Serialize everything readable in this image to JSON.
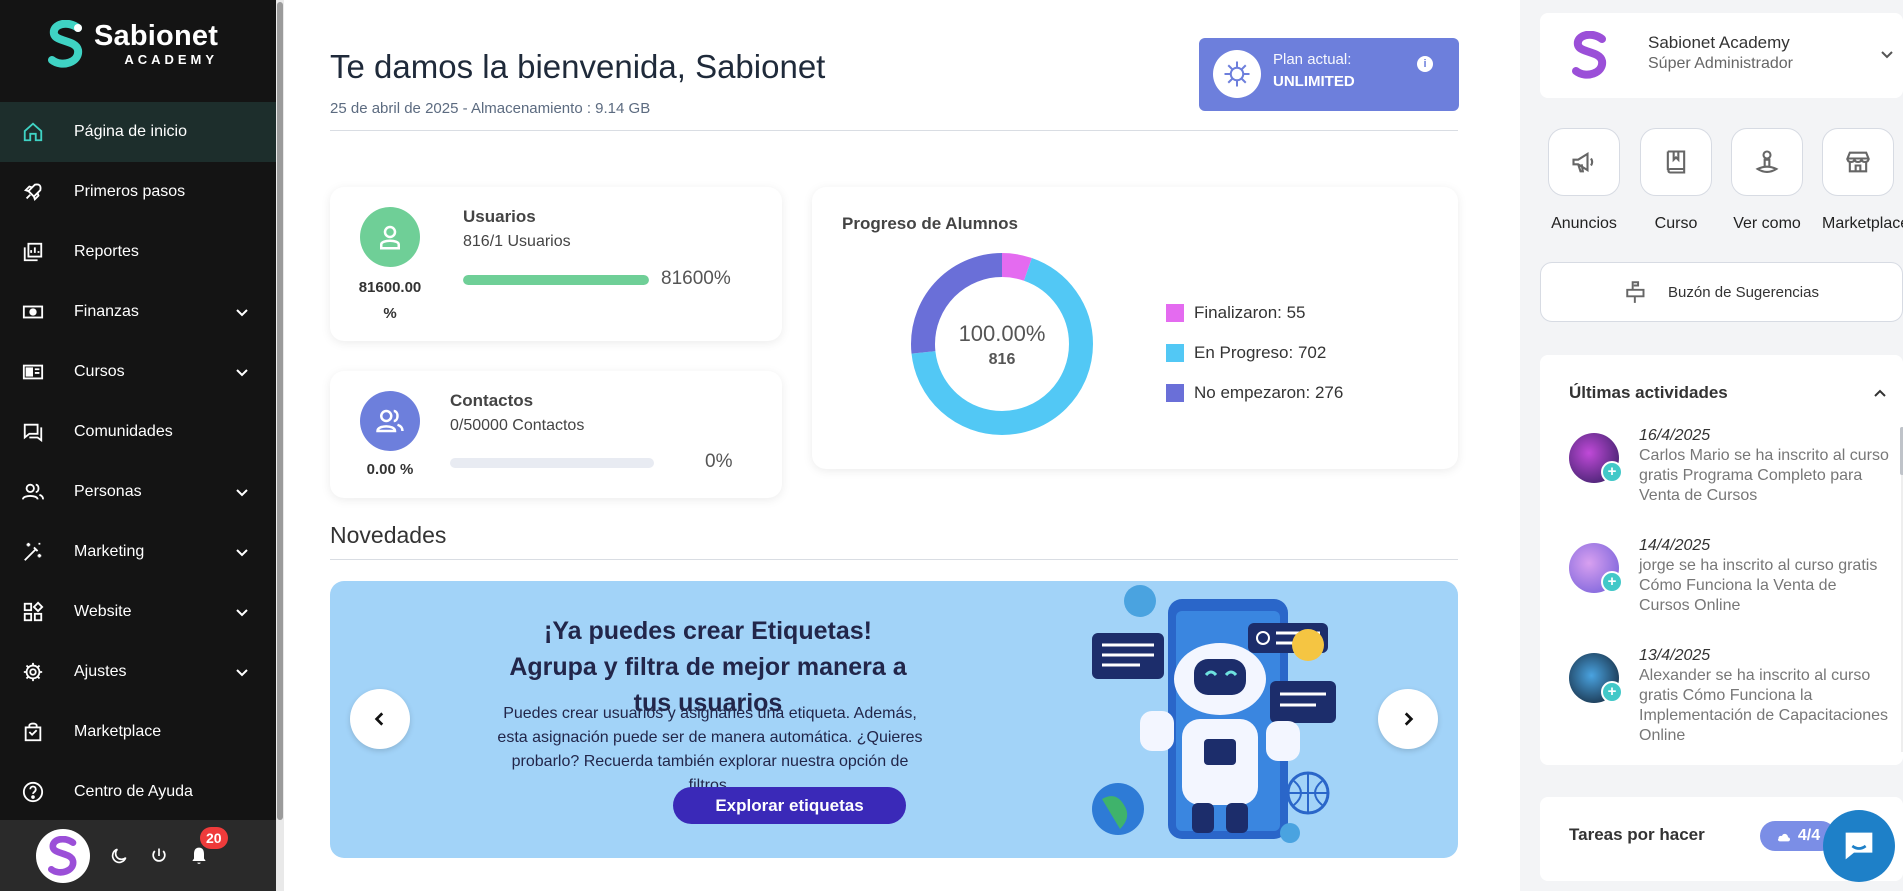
{
  "sidebar": {
    "brand": {
      "name": "Sabionet",
      "sub": "ACADEMY"
    },
    "items": [
      {
        "label": "Página de inicio",
        "icon": "home-icon",
        "active": true,
        "has_chevron": false
      },
      {
        "label": "Primeros pasos",
        "icon": "rocket-icon",
        "active": false,
        "has_chevron": false
      },
      {
        "label": "Reportes",
        "icon": "reports-icon",
        "active": false,
        "has_chevron": false
      },
      {
        "label": "Finanzas",
        "icon": "money-icon",
        "active": false,
        "has_chevron": true
      },
      {
        "label": "Cursos",
        "icon": "courses-icon",
        "active": false,
        "has_chevron": true
      },
      {
        "label": "Comunidades",
        "icon": "chat-icon",
        "active": false,
        "has_chevron": false
      },
      {
        "label": "Personas",
        "icon": "people-icon",
        "active": false,
        "has_chevron": true
      },
      {
        "label": "Marketing",
        "icon": "magic-wand-icon",
        "active": false,
        "has_chevron": true
      },
      {
        "label": "Website",
        "icon": "widgets-icon",
        "active": false,
        "has_chevron": true
      },
      {
        "label": "Ajustes",
        "icon": "gear-icon",
        "active": false,
        "has_chevron": true
      },
      {
        "label": "Marketplace",
        "icon": "shopping-bag-icon",
        "active": false,
        "has_chevron": false
      },
      {
        "label": "Centro de Ayuda",
        "icon": "help-icon",
        "active": false,
        "has_chevron": false
      }
    ],
    "notifications_count": "20"
  },
  "header": {
    "title": "Te damos la bienvenida, Sabionet",
    "subtitle": "25 de abril de 2025 - Almacenamiento : 9.14 GB",
    "plan_label": "Plan actual:",
    "plan_value": "UNLIMITED"
  },
  "stats": {
    "users": {
      "title": "Usuarios",
      "sub": "816/1 Usuarios",
      "pct_line1": "81600.00",
      "pct_line2": "%",
      "bar_text": "81600%",
      "fill": 1.0,
      "color": "#6fcf97"
    },
    "contacts": {
      "title": "Contactos",
      "sub": "0/50000 Contactos",
      "pct": "0.00 %",
      "bar_text": "0%",
      "fill": 0.0,
      "color": "#6d7fdc"
    }
  },
  "progress": {
    "title": "Progreso de Alumnos",
    "center_pct": "100.00%",
    "center_total": "816",
    "legend": [
      "Finalizaron: 55",
      "En Progreso: 702",
      "No empezaron: 276"
    ]
  },
  "chart_data": {
    "type": "pie",
    "title": "Progreso de Alumnos",
    "categories": [
      "Finalizaron",
      "En Progreso",
      "No empezaron"
    ],
    "values": [
      55,
      702,
      276
    ],
    "colors": [
      "#e46bf0",
      "#52c8f5",
      "#6a6fd8"
    ],
    "donut": true,
    "legend": "right"
  },
  "novedades": {
    "title": "Novedades",
    "banner_heading": "¡Ya puedes crear Etiquetas! Agrupa y filtra de mejor manera a tus usuarios",
    "banner_text": "Puedes crear usuarios y asignarles una etiqueta. Además, esta asignación puede ser de manera automática. ¿Quieres probarlo? Recuerda también explorar nuestra opción de filtros.",
    "banner_button": "Explorar etiquetas"
  },
  "right": {
    "profile_name": "Sabionet Academy",
    "profile_role": "Súper Administrador",
    "quick_actions": [
      {
        "label": "Anuncios",
        "icon": "megaphone-icon"
      },
      {
        "label": "Curso",
        "icon": "book-icon"
      },
      {
        "label": "Ver como",
        "icon": "person-view-icon"
      },
      {
        "label": "Marketplace",
        "icon": "store-icon"
      }
    ],
    "suggestions": "Buzón de Sugerencias",
    "activities_title": "Últimas actividades",
    "activities": [
      {
        "date": "16/4/2025",
        "text": "Carlos Mario se ha inscrito al curso gratis Programa Completo para Venta de Cursos"
      },
      {
        "date": "14/4/2025",
        "text": "jorge se ha inscrito al curso gratis Cómo Funciona la Venta de Cursos Online"
      },
      {
        "date": "13/4/2025",
        "text": "Alexander se ha inscrito al curso gratis Cómo Funciona la Implementación de Capacitaciones Online"
      }
    ],
    "tasks_title": "Tareas por hacer",
    "tasks_badge": "4/4"
  }
}
